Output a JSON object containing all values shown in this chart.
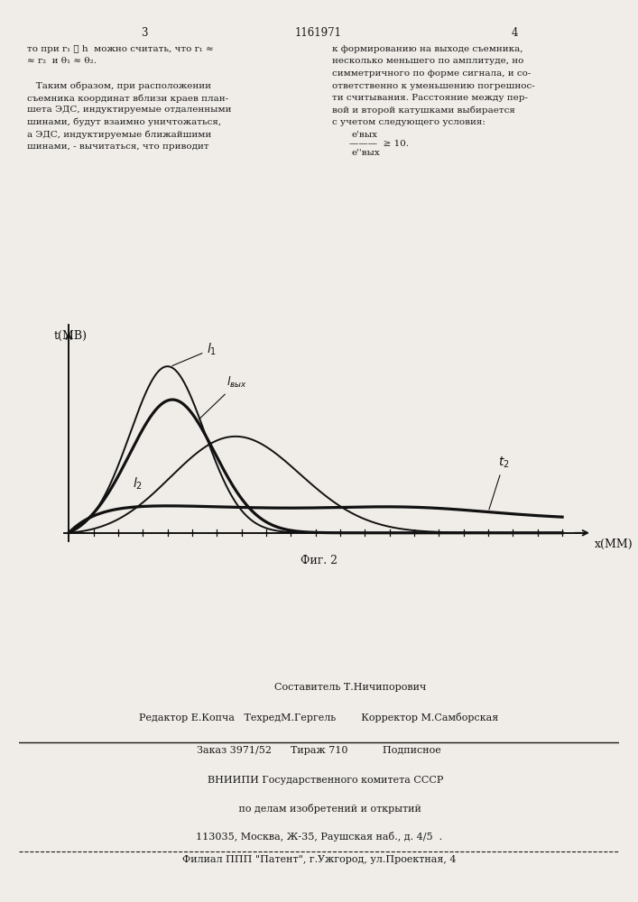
{
  "page_width": 7.07,
  "page_height": 10.0,
  "bg_color": "#f0ede8",
  "text_color": "#1a1a1a",
  "left_col_text": [
    "то при r₁ ≫ h  можно считать, что r₁ ≈",
    "≈ r₂  и θ₁ ≈ θ₂.",
    "",
    "   Таким образом, при расположении",
    "съемника координат вблизи краев план-",
    "шета ЭДС, индуктируемые отдаленными",
    "шинами, будут взаимно уничтожаться,",
    "а ЭДС, индуктируемые ближайшими",
    "шинами, - вычитаться, что приводит"
  ],
  "right_col_text": [
    "к формированию на выходе съемника,",
    "несколько меньшего по амплитуде, но",
    "симметричного по форме сигнала, и со-",
    "ответственно к уменьшению погрешнос-",
    "ти считывания. Расстояние между пер-",
    "вой и второй катушками выбирается",
    "с учетом следующего условия:"
  ],
  "page_num_left": "3",
  "page_num_center": "1161971",
  "page_num_right": "4",
  "fig_caption": "Фиг. 2",
  "y_axis_label": "t(МВ)",
  "x_axis_label": "x(ММ)",
  "curve_color": "#111111",
  "footer_line1": "                    Составитель Т.Ничипорович",
  "footer_line2": "Редактор Е.Копча   ТехредМ.Гергель        Корректор М.Самборская",
  "footer_line3": "Заказ 3971/52      Тираж 710           Подписное",
  "footer_line4": "    ВНИИПИ Государственного комитета СССР",
  "footer_line5": "       по делам изобретений и открытий",
  "footer_line6": "113035, Москва, Ж-35, Раушская наб., д. 4/5  .",
  "footer_line7": "Филиал ППП \"Патент\", г.Ужгород, ул.Проектная, 4"
}
